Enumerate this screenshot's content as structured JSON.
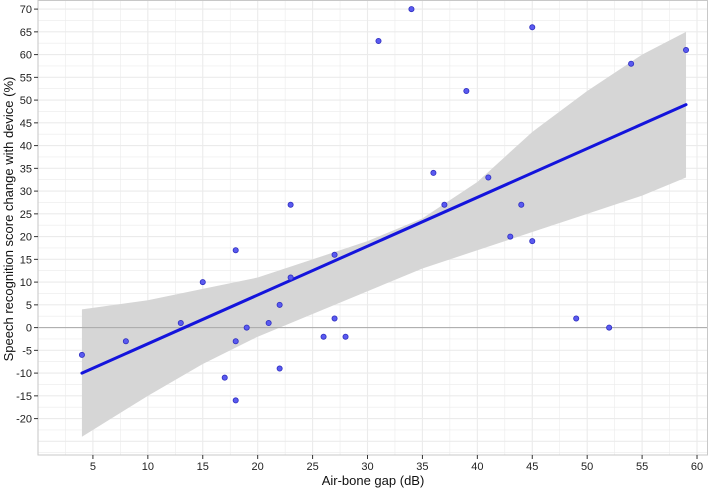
{
  "chart_data": {
    "type": "scatter",
    "title": "",
    "xlabel": "Air-bone gap (dB)",
    "ylabel": "Speech recognition score change with device (%)",
    "xlim": [
      0,
      61
    ],
    "ylim": [
      -28,
      72
    ],
    "x_ticks": [
      5,
      10,
      15,
      20,
      25,
      30,
      35,
      40,
      45,
      50,
      55,
      60
    ],
    "y_ticks": [
      -20,
      -15,
      -10,
      -5,
      0,
      5,
      10,
      15,
      20,
      25,
      30,
      35,
      40,
      45,
      50,
      55,
      60,
      65,
      70
    ],
    "grid": true,
    "reference_line_y": 0,
    "points": [
      {
        "x": 4,
        "y": -6
      },
      {
        "x": 8,
        "y": -3
      },
      {
        "x": 13,
        "y": 1
      },
      {
        "x": 15,
        "y": 10
      },
      {
        "x": 17,
        "y": -11
      },
      {
        "x": 18,
        "y": 17
      },
      {
        "x": 18,
        "y": -3
      },
      {
        "x": 18,
        "y": -16
      },
      {
        "x": 19,
        "y": 0
      },
      {
        "x": 21,
        "y": 1
      },
      {
        "x": 22,
        "y": 5
      },
      {
        "x": 22,
        "y": -9
      },
      {
        "x": 23,
        "y": 27
      },
      {
        "x": 23,
        "y": 11
      },
      {
        "x": 26,
        "y": -2
      },
      {
        "x": 27,
        "y": 16
      },
      {
        "x": 27,
        "y": 2
      },
      {
        "x": 28,
        "y": -2
      },
      {
        "x": 31,
        "y": 63
      },
      {
        "x": 34,
        "y": 70
      },
      {
        "x": 36,
        "y": 34
      },
      {
        "x": 37,
        "y": 27
      },
      {
        "x": 39,
        "y": 52
      },
      {
        "x": 41,
        "y": 33
      },
      {
        "x": 43,
        "y": 20
      },
      {
        "x": 44,
        "y": 27
      },
      {
        "x": 45,
        "y": 66
      },
      {
        "x": 45,
        "y": 19
      },
      {
        "x": 49,
        "y": 2
      },
      {
        "x": 52,
        "y": 0
      },
      {
        "x": 54,
        "y": 58
      },
      {
        "x": 59,
        "y": 61
      }
    ],
    "fit_line": {
      "x": [
        4,
        59
      ],
      "y": [
        -10,
        49
      ]
    },
    "confidence_band": {
      "x": [
        4,
        10,
        15,
        20,
        25,
        30,
        35,
        40,
        45,
        50,
        55,
        59
      ],
      "lower": [
        -24,
        -15,
        -8,
        -2,
        3,
        8,
        13,
        17,
        21,
        25,
        29,
        33
      ],
      "upper": [
        4,
        6,
        8.5,
        11,
        15,
        19,
        24,
        32,
        43,
        52,
        60,
        65
      ]
    },
    "colors": {
      "points": "#5a5af0",
      "points_edge": "#2f2fc0",
      "fit_line": "#1414dc",
      "band": "#d6d6d6",
      "grid": "#ebebeb",
      "reference_line": "#a8a8a8",
      "frame": "#c8c8c8"
    }
  }
}
